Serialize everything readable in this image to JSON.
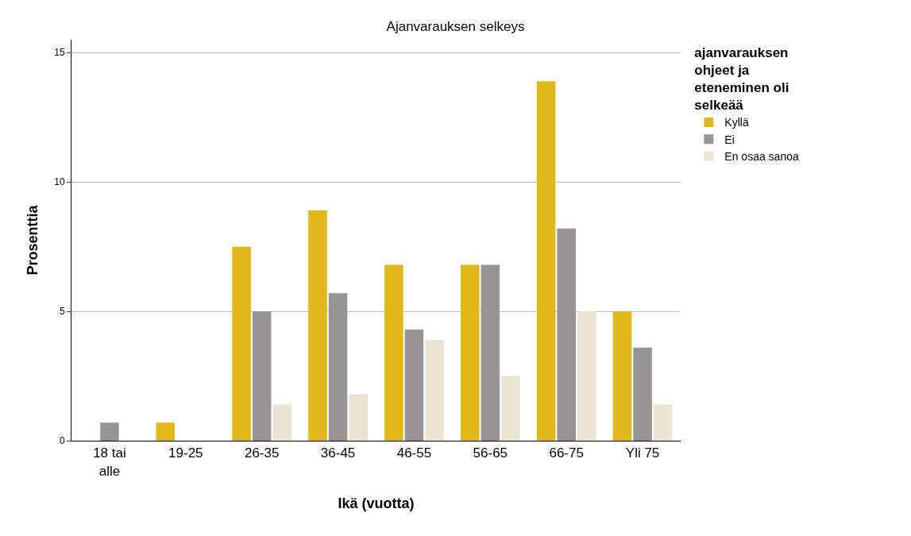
{
  "chart_data": {
    "type": "bar",
    "title": "Ajanvarauksen selkeys",
    "xlabel": "Ikä (vuotta)",
    "ylabel": "Prosenttia",
    "legend_title": "ajanvarauksen ohjeet ja eteneminen oli selkeää",
    "categories": [
      "18 tai\nalle",
      "19-25",
      "26-35",
      "36-45",
      "46-55",
      "56-65",
      "66-75",
      "Yli 75"
    ],
    "series": [
      {
        "name": "Kyllä",
        "color": "#e0b81a",
        "values": [
          0,
          0.7,
          7.5,
          8.9,
          6.8,
          6.8,
          13.9,
          5.0
        ]
      },
      {
        "name": "Ei",
        "color": "#999494",
        "values": [
          0.7,
          0,
          5.0,
          5.7,
          4.3,
          6.8,
          8.2,
          3.6
        ]
      },
      {
        "name": "En osaa sanoa",
        "color": "#ebe4d0",
        "values": [
          0,
          0,
          1.4,
          1.8,
          3.9,
          2.5,
          5.0,
          1.4
        ]
      }
    ],
    "ylim": [
      0,
      15.5
    ],
    "yticks": [
      0,
      5,
      10,
      15
    ],
    "grid": "y",
    "legend": "top right"
  }
}
